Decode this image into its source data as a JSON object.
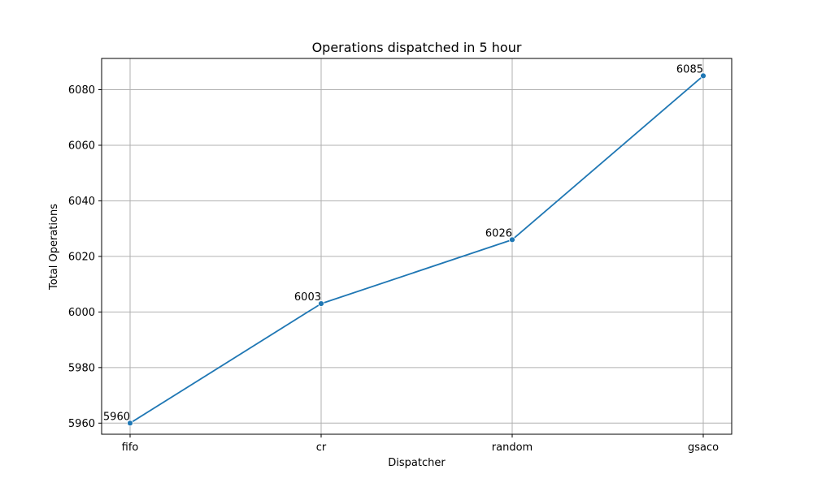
{
  "chart_data": {
    "type": "line",
    "title": "Operations dispatched in 5 hour",
    "xlabel": "Dispatcher",
    "ylabel": "Total Operations",
    "categories": [
      "fifo",
      "cr",
      "random",
      "gsaco"
    ],
    "series": [
      {
        "values": [
          5960,
          6003,
          6026,
          6085
        ],
        "color": "#1f77b4",
        "marker": "circle"
      }
    ],
    "data_labels": [
      "5960",
      "6003",
      "6026",
      "6085"
    ],
    "ylim": [
      5956,
      6091.25
    ],
    "yticks": [
      5960,
      5980,
      6000,
      6020,
      6040,
      6060,
      6080
    ],
    "grid": true,
    "legend": "none"
  }
}
